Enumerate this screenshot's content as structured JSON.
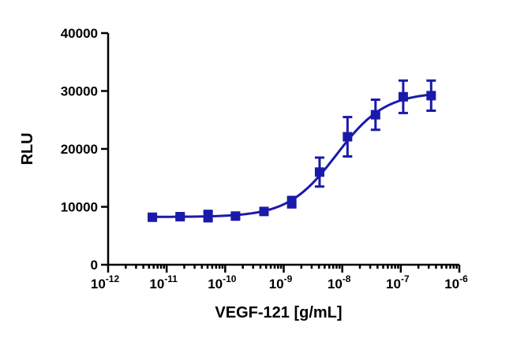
{
  "chart_data": {
    "type": "scatter",
    "title": "",
    "xlabel": "VEGF-121 [g/mL]",
    "ylabel": "RLU",
    "x_scale": "log",
    "xlim": [
      1e-12,
      1e-06
    ],
    "ylim": [
      0,
      40000
    ],
    "grid": false,
    "legend": "none",
    "color": "#1a1aaa",
    "x_ticks": [
      {
        "value": 1e-12,
        "base": "10",
        "exp": "-12"
      },
      {
        "value": 1e-11,
        "base": "10",
        "exp": "-11"
      },
      {
        "value": 1e-10,
        "base": "10",
        "exp": "-10"
      },
      {
        "value": 1e-09,
        "base": "10",
        "exp": "-9"
      },
      {
        "value": 1e-08,
        "base": "10",
        "exp": "-8"
      },
      {
        "value": 1e-07,
        "base": "10",
        "exp": "-7"
      },
      {
        "value": 1e-06,
        "base": "10",
        "exp": "-6"
      }
    ],
    "y_ticks": [
      {
        "value": 0,
        "label": "0"
      },
      {
        "value": 10000,
        "label": "10000"
      },
      {
        "value": 20000,
        "label": "20000"
      },
      {
        "value": 30000,
        "label": "30000"
      },
      {
        "value": 40000,
        "label": "40000"
      }
    ],
    "points": [
      {
        "x": 5.7e-12,
        "y": 8200,
        "err": 300
      },
      {
        "x": 1.7e-11,
        "y": 8300,
        "err": 250
      },
      {
        "x": 5.1e-11,
        "y": 8400,
        "err": 900
      },
      {
        "x": 1.5e-10,
        "y": 8400,
        "err": 300
      },
      {
        "x": 4.6e-10,
        "y": 9200,
        "err": 300
      },
      {
        "x": 1.37e-09,
        "y": 10800,
        "err": 900
      },
      {
        "x": 4.1e-09,
        "y": 16000,
        "err": 2500
      },
      {
        "x": 1.23e-08,
        "y": 22100,
        "err": 3400
      },
      {
        "x": 3.7e-08,
        "y": 25900,
        "err": 2600
      },
      {
        "x": 1.1e-07,
        "y": 29000,
        "err": 2800
      },
      {
        "x": 3.3e-07,
        "y": 29200,
        "err": 2600
      }
    ],
    "fit": {
      "model": "4PL",
      "bottom": 8250,
      "top": 29800,
      "ec50": 8e-09,
      "hill": 1.05
    }
  }
}
